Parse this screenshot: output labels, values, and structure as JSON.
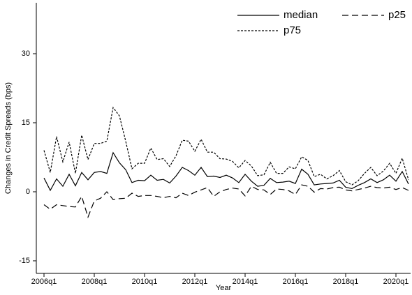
{
  "chart_data": {
    "type": "line",
    "y_label": "Changes in Credit Spreads (bps)",
    "x_label": "Year",
    "categories": [
      "2006q1",
      null,
      null,
      null,
      null,
      null,
      null,
      null,
      "2008q1",
      null,
      null,
      null,
      null,
      null,
      null,
      null,
      "2010q1",
      null,
      null,
      null,
      null,
      null,
      null,
      null,
      "2012q1",
      null,
      null,
      null,
      null,
      null,
      null,
      null,
      "2014q1",
      null,
      null,
      null,
      null,
      null,
      null,
      null,
      "2016q1",
      null,
      null,
      null,
      null,
      null,
      null,
      null,
      "2018q1",
      null,
      null,
      null,
      null,
      null,
      null,
      null,
      "2020q1",
      null,
      null
    ],
    "ylim": [
      -17.7,
      41
    ],
    "yticks": [
      -15,
      0,
      15,
      30
    ],
    "grid": false,
    "legend": "top-right",
    "series": [
      {
        "name": "median",
        "color": "#000000",
        "style": "solid",
        "values": [
          3,
          0.3,
          2.8,
          1.2,
          3.8,
          1.3,
          4.2,
          2.6,
          4.2,
          4.4,
          4.0,
          8.5,
          6.3,
          4.8,
          2.0,
          2.5,
          2.4,
          3.6,
          2.5,
          2.7,
          1.9,
          3.4,
          5.3,
          4.6,
          3.6,
          5.3,
          3.3,
          3.4,
          3.1,
          3.6,
          3.0,
          2.0,
          3.8,
          2.3,
          1.2,
          1.4,
          2.9,
          2.0,
          2.1,
          2.3,
          1.8,
          4.9,
          3.8,
          1.5,
          1.7,
          1.8,
          1.9,
          2.5,
          1.0,
          0.7,
          1.4,
          2.0,
          2.8,
          2.0,
          2.6,
          3.6,
          2.3,
          4.4,
          1.7
        ]
      },
      {
        "name": "p25",
        "color": "#000000",
        "style": "dashed",
        "values": [
          -2.8,
          -3.8,
          -2.8,
          -3.0,
          -3.2,
          -3.3,
          -1.0,
          -5.5,
          -2.0,
          -1.4,
          0,
          -1.7,
          -1.5,
          -1.4,
          -0.3,
          -1.0,
          -0.8,
          -0.8,
          -1.0,
          -1.3,
          -1.0,
          -1.3,
          -0.3,
          -0.8,
          -0.1,
          0.4,
          0.9,
          -1.0,
          0,
          0.5,
          0.8,
          0.6,
          -0.9,
          1.2,
          0.5,
          0.4,
          -0.6,
          0.6,
          0.5,
          0.2,
          -0.6,
          1.5,
          1.2,
          -0.1,
          0.7,
          0.6,
          0.9,
          1.0,
          0.4,
          0.2,
          0.5,
          0.8,
          1.2,
          0.9,
          0.8,
          1.0,
          0.5,
          0.9,
          0.3
        ]
      },
      {
        "name": "p75",
        "color": "#000000",
        "style": "dotted",
        "values": [
          9,
          4.2,
          12,
          6.5,
          10.8,
          4,
          12.3,
          7,
          10.5,
          10.5,
          11,
          18.3,
          16.5,
          11,
          5,
          6.2,
          6.2,
          9.5,
          7,
          7.2,
          5.5,
          7.8,
          11.2,
          11,
          8.8,
          11.4,
          8.6,
          8.6,
          7.2,
          7.1,
          6.6,
          5.2,
          6.8,
          5.6,
          3.5,
          3.7,
          6.4,
          4,
          4,
          5.4,
          5,
          7.6,
          6.8,
          3.3,
          3.8,
          2.8,
          3.5,
          4.6,
          2.2,
          1.5,
          2.4,
          4,
          5.3,
          3.5,
          4.5,
          6.2,
          4,
          7.3,
          2.6
        ]
      }
    ]
  }
}
